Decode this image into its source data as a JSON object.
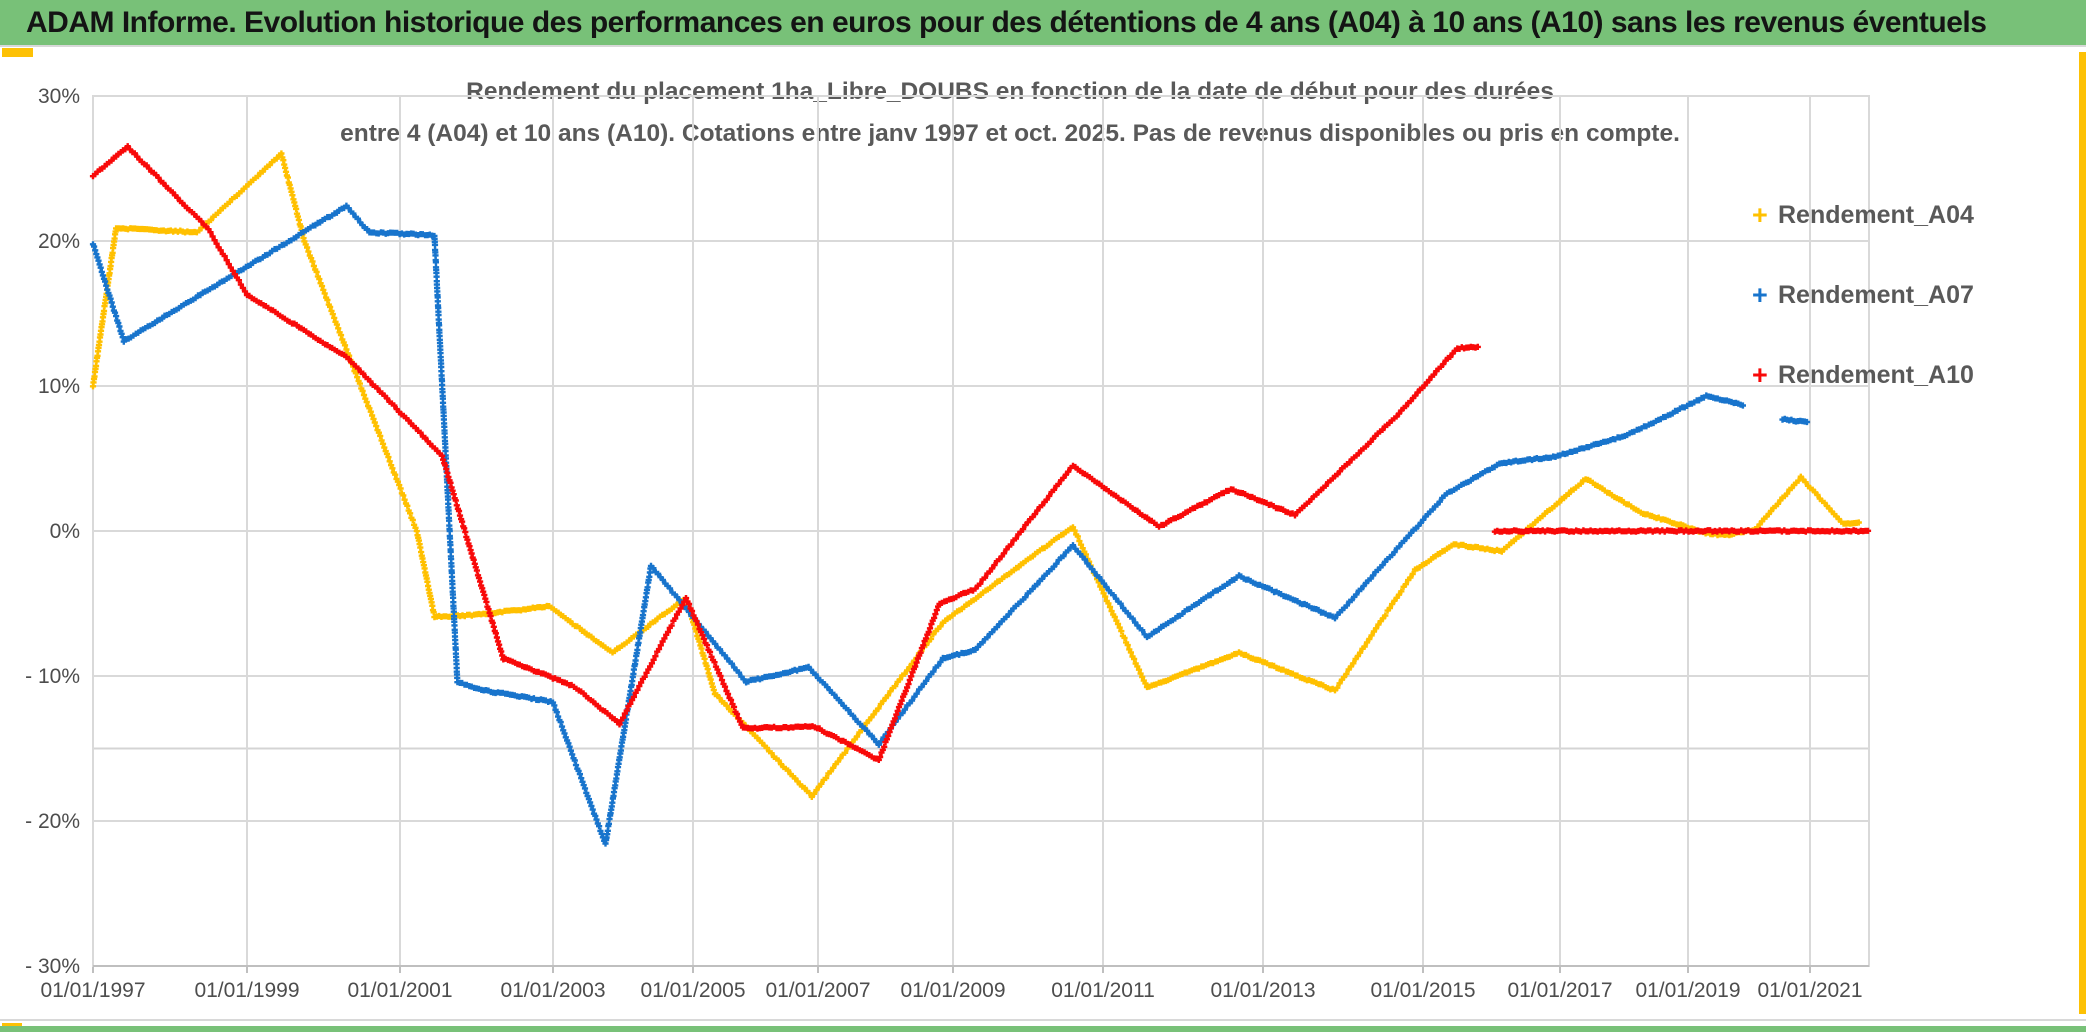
{
  "window": {
    "header_title": "ADAM Informe. Evolution historique des performances en euros pour des détentions de 4 ans (A04) à 10 ans (A10) sans les revenus éventuels",
    "colors": {
      "header_bg": "#78c178",
      "accent_yellow": "#fdc105",
      "bottom_bar": "#78c178"
    }
  },
  "chart": {
    "title_line1": "Rendement du placement 1ha_Libre_DOUBS en fonction de la date de début pour des durées",
    "title_line2": "entre 4 (A04) et 10 ans (A10). Cotations entre janv 1997 et oct. 2025. Pas de revenus disponibles ou pris en compte.",
    "legend": [
      {
        "label": "Rendement_A04",
        "color": "#FFC000"
      },
      {
        "label": "Rendement_A07",
        "color": "#1874CC"
      },
      {
        "label": "Rendement_A10",
        "color": "#F80909"
      }
    ]
  },
  "chart_data": {
    "type": "line",
    "marker": "plus",
    "grid": true,
    "legend_position": "right",
    "x_axis": {
      "tick_labels": [
        "01/01/1997",
        "01/01/1999",
        "01/01/2001",
        "01/01/2003",
        "01/01/2005",
        "01/01/2007",
        "01/01/2009",
        "01/01/2011",
        "01/01/2013",
        "01/01/2015",
        "01/01/2017",
        "01/01/2019",
        "01/01/2021"
      ],
      "tick_years": [
        1997,
        1999,
        2001,
        2003,
        2005,
        2007,
        2009,
        2011,
        2013,
        2015,
        2017,
        2019,
        2021
      ],
      "range_years": [
        1997.0,
        2022.0
      ]
    },
    "y_axis": {
      "tick_labels": [
        "30%",
        "20%",
        "10%",
        "0%",
        "- 10%",
        "- 20%",
        "- 30%"
      ],
      "tick_values": [
        30,
        20,
        10,
        0,
        -10,
        -20,
        -30
      ],
      "extra_gridline_value": -15,
      "ylim": [
        -30,
        30
      ],
      "unit": "percent"
    },
    "series": [
      {
        "name": "Rendement_A04",
        "color": "#FFC000",
        "segments": [
          [
            [
              1997.0,
              10.0
            ],
            [
              1997.3,
              20.9
            ],
            [
              1998.35,
              20.6
            ],
            [
              1999.45,
              26.0
            ],
            [
              1999.75,
              20.0
            ],
            [
              2001.22,
              0.0
            ],
            [
              2001.45,
              -5.9
            ],
            [
              2002.0,
              -5.8
            ],
            [
              2002.95,
              -5.2
            ],
            [
              2003.85,
              -8.4
            ],
            [
              2004.9,
              -4.6
            ],
            [
              2005.35,
              -11.2
            ],
            [
              2006.9,
              -18.3
            ],
            [
              2008.85,
              -6.3
            ],
            [
              2010.6,
              0.3
            ],
            [
              2011.55,
              -10.8
            ],
            [
              2012.7,
              -8.4
            ],
            [
              2013.9,
              -11.0
            ],
            [
              2014.9,
              -2.7
            ],
            [
              2015.45,
              -0.9
            ],
            [
              2016.15,
              -1.4
            ],
            [
              2017.4,
              3.6
            ],
            [
              2018.3,
              1.2
            ],
            [
              2018.75,
              0.6
            ],
            [
              2019.25,
              -0.1
            ],
            [
              2019.6,
              -0.3
            ],
            [
              2020.1,
              0.1
            ],
            [
              2020.85,
              3.7
            ],
            [
              2021.55,
              0.5
            ],
            [
              2021.8,
              0.6
            ]
          ]
        ]
      },
      {
        "name": "Rendement_A07",
        "color": "#1874CC",
        "segments": [
          [
            [
              1997.0,
              19.8
            ],
            [
              1997.4,
              13.1
            ],
            [
              2000.3,
              22.4
            ],
            [
              2000.6,
              20.6
            ],
            [
              2001.45,
              20.4
            ],
            [
              2001.75,
              -10.4
            ],
            [
              2002.0,
              -10.9
            ],
            [
              2003.0,
              -11.8
            ],
            [
              2003.75,
              -21.6
            ],
            [
              2004.4,
              -2.4
            ],
            [
              2005.85,
              -10.4
            ],
            [
              2006.85,
              -9.4
            ],
            [
              2007.9,
              -14.7
            ],
            [
              2008.85,
              -8.8
            ],
            [
              2009.3,
              -8.2
            ],
            [
              2010.6,
              -1.0
            ],
            [
              2011.55,
              -7.3
            ],
            [
              2012.7,
              -3.1
            ],
            [
              2013.9,
              -6.0
            ],
            [
              2015.35,
              2.6
            ],
            [
              2016.15,
              4.7
            ],
            [
              2016.9,
              5.1
            ],
            [
              2018.05,
              6.6
            ],
            [
              2019.3,
              9.3
            ],
            [
              2019.9,
              8.7
            ]
          ],
          [
            [
              2020.55,
              7.7
            ],
            [
              2020.95,
              7.5
            ]
          ]
        ]
      },
      {
        "name": "Rendement_A10",
        "color": "#F80909",
        "segments": [
          [
            [
              1997.0,
              24.5
            ],
            [
              1997.45,
              26.5
            ],
            [
              1998.5,
              20.8
            ],
            [
              1999.0,
              16.3
            ],
            [
              2000.3,
              12.0
            ],
            [
              2001.55,
              5.2
            ],
            [
              2002.35,
              -8.8
            ],
            [
              2003.3,
              -10.7
            ],
            [
              2003.95,
              -13.3
            ],
            [
              2004.9,
              -4.6
            ],
            [
              2005.8,
              -13.6
            ],
            [
              2006.95,
              -13.5
            ],
            [
              2007.9,
              -15.8
            ],
            [
              2008.8,
              -5.0
            ],
            [
              2009.3,
              -4.0
            ],
            [
              2010.6,
              4.5
            ],
            [
              2011.7,
              0.3
            ],
            [
              2012.6,
              2.9
            ],
            [
              2013.4,
              1.1
            ],
            [
              2014.7,
              8.1
            ],
            [
              2015.5,
              12.6
            ],
            [
              2015.8,
              12.7
            ]
          ],
          [
            [
              2016.05,
              0.0
            ],
            [
              2021.95,
              0.0
            ]
          ]
        ]
      }
    ]
  }
}
